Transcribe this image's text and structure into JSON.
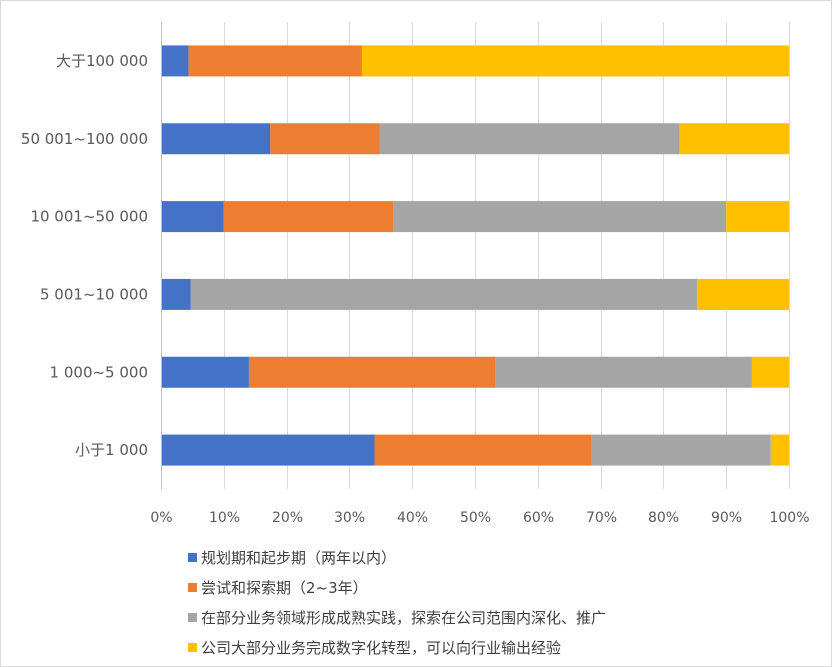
{
  "chart_data": {
    "type": "bar",
    "orientation": "horizontal",
    "stacked": "percent",
    "categories": [
      "小于1 000",
      "1 000~5 000",
      "5 001~10 000",
      "10 001~50 000",
      "50 001~100 000",
      "大于100 000"
    ],
    "series": [
      {
        "name": "规划期和起步期（两年以内）",
        "color": "#4472c4",
        "values": [
          34,
          14,
          4.7,
          10,
          17.4,
          4.4
        ]
      },
      {
        "name": "尝试和探索期（2~3年）",
        "color": "#ed7d31",
        "values": [
          34.6,
          39.3,
          0,
          27,
          17.4,
          27.6
        ]
      },
      {
        "name": "在部分业务领域形成成熟实践，探索在公司范围内深化、推广",
        "color": "#a5a5a5",
        "values": [
          28.5,
          40.8,
          80.7,
          53,
          47.8,
          0
        ]
      },
      {
        "name": "公司大部分业务完成数字化转型，可以向行业输出经验",
        "color": "#ffc000",
        "values": [
          2.9,
          5.9,
          14.6,
          10,
          17.4,
          68
        ]
      }
    ],
    "xlim": [
      0,
      100
    ],
    "xticks": [
      "0%",
      "10%",
      "20%",
      "30%",
      "40%",
      "50%",
      "60%",
      "70%",
      "80%",
      "90%",
      "100%"
    ],
    "grid": true,
    "legend": "bottom"
  }
}
